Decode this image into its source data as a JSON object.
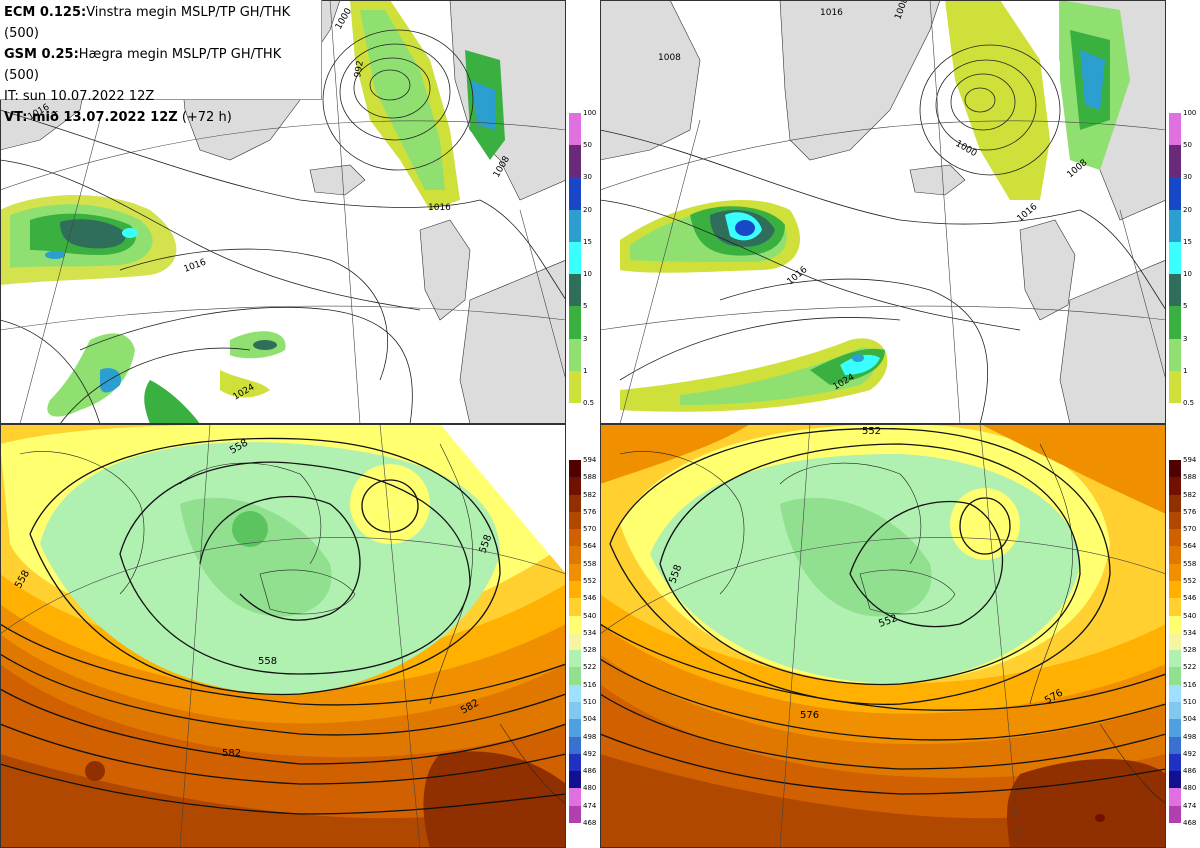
{
  "header": {
    "line1_bold": "ECM 0.125:",
    "line1_text": "Vinstra megin MSLP/TP GH/THK (500)",
    "line2_bold": "GSM 0.25:",
    "line2_text": "Hægra megin MSLP/TP GH/THK (500)",
    "line3_text": "IT: sun 10.07.2022 12Z",
    "line4_bold": "VT: mið 13.07.2022 12Z",
    "line4_text": " (+72 h)"
  },
  "colors": {
    "land": "#dcdcdc",
    "sea": "#ffffff",
    "precip": [
      "#cfe03a",
      "#8fe070",
      "#3ab040",
      "#2f6e5a",
      "#3affff",
      "#2a9fd0",
      "#1848c8",
      "#6a2a7a",
      "#e070e0"
    ],
    "thickness": [
      "#5a0048",
      "#7a1a7a",
      "#b040b0",
      "#e070e0",
      "#101090",
      "#2030c0",
      "#3a70d0",
      "#50a0e0",
      "#80c8f0",
      "#a0e0ff",
      "#90e090",
      "#b0f0b0",
      "#f5f5a0",
      "#ffff70",
      "#ffd030",
      "#ffb000",
      "#f09000",
      "#e07800",
      "#d06000",
      "#b04800",
      "#903000",
      "#701000",
      "#500000"
    ]
  },
  "precip_scale": {
    "labels": [
      "100",
      "50",
      "30",
      "20",
      "15",
      "10",
      "5",
      "3",
      "1",
      "0.5"
    ]
  },
  "thickness_scale": {
    "labels": [
      "594",
      "588",
      "582",
      "576",
      "570",
      "564",
      "558",
      "552",
      "546",
      "540",
      "534",
      "528",
      "522",
      "516",
      "510",
      "504",
      "498",
      "492",
      "486",
      "480",
      "474",
      "468"
    ]
  },
  "panels": {
    "top_left": {
      "isobar_labels": [
        "1000",
        "992",
        "1008",
        "1016",
        "1016",
        "1024",
        "1016"
      ]
    },
    "top_right": {
      "isobar_labels": [
        "1016",
        "1008",
        "1008",
        "1000",
        "1008",
        "1016",
        "1016",
        "1024"
      ]
    },
    "bottom_left": {
      "contour_labels": [
        "558",
        "558",
        "558",
        "558",
        "582",
        "582"
      ]
    },
    "bottom_right": {
      "contour_labels": [
        "552",
        "558",
        "552",
        "576",
        "576"
      ]
    }
  }
}
